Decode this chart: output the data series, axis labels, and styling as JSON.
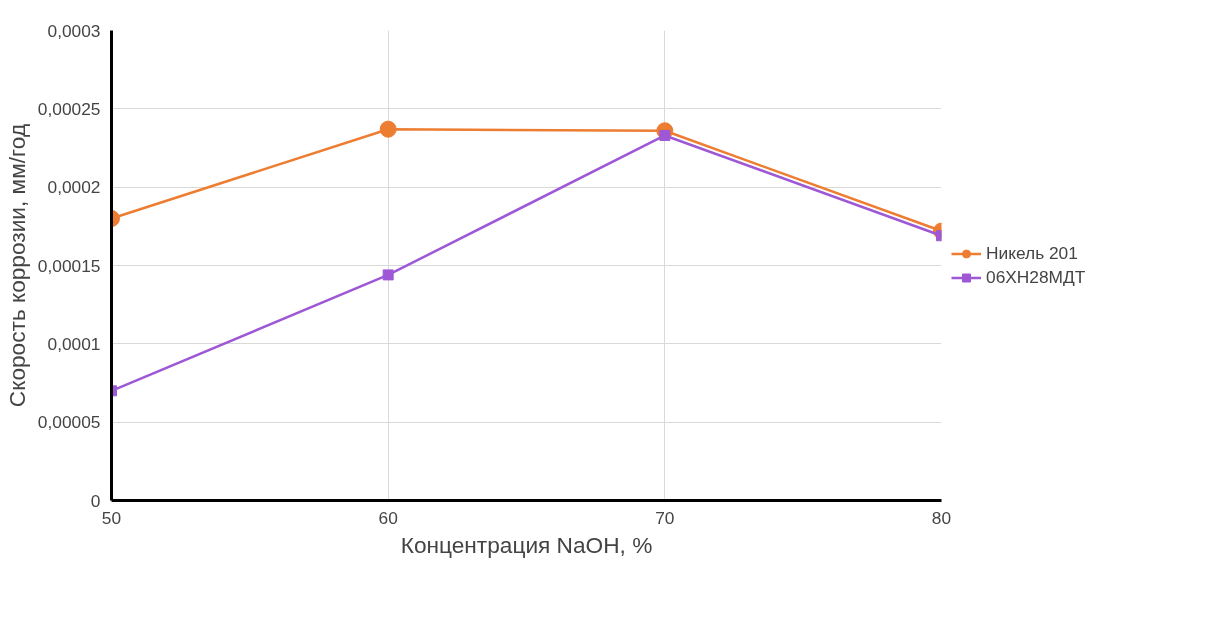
{
  "chart_data": {
    "type": "line",
    "xlabel": "Концентрация NaOH, %",
    "ylabel": "Скорость коррозии, мм/год",
    "x": [
      50,
      60,
      70,
      80
    ],
    "series": [
      {
        "name": "Никель 201",
        "color": "#ed7d31",
        "marker": "circle",
        "values": [
          0.00018,
          0.000237,
          0.000236,
          0.000172
        ]
      },
      {
        "name": "06ХН28МДТ",
        "color": "#9e58d6",
        "marker": "square",
        "values": [
          7e-05,
          0.000144,
          0.000233,
          0.000169
        ]
      }
    ],
    "xlim": [
      50,
      80
    ],
    "xticks": [
      50,
      60,
      70,
      80
    ],
    "ylim": [
      0,
      0.0003
    ],
    "yticks": [
      {
        "value": 0,
        "label": "0"
      },
      {
        "value": 5e-05,
        "label": "0,00005"
      },
      {
        "value": 0.0001,
        "label": "0,0001"
      },
      {
        "value": 0.00015,
        "label": "0,00015"
      },
      {
        "value": 0.0002,
        "label": "0,0002"
      },
      {
        "value": 0.00025,
        "label": "0,00025"
      },
      {
        "value": 0.0003,
        "label": "0,0003"
      }
    ],
    "grid": true,
    "legend": "right",
    "line_style": "solid"
  }
}
